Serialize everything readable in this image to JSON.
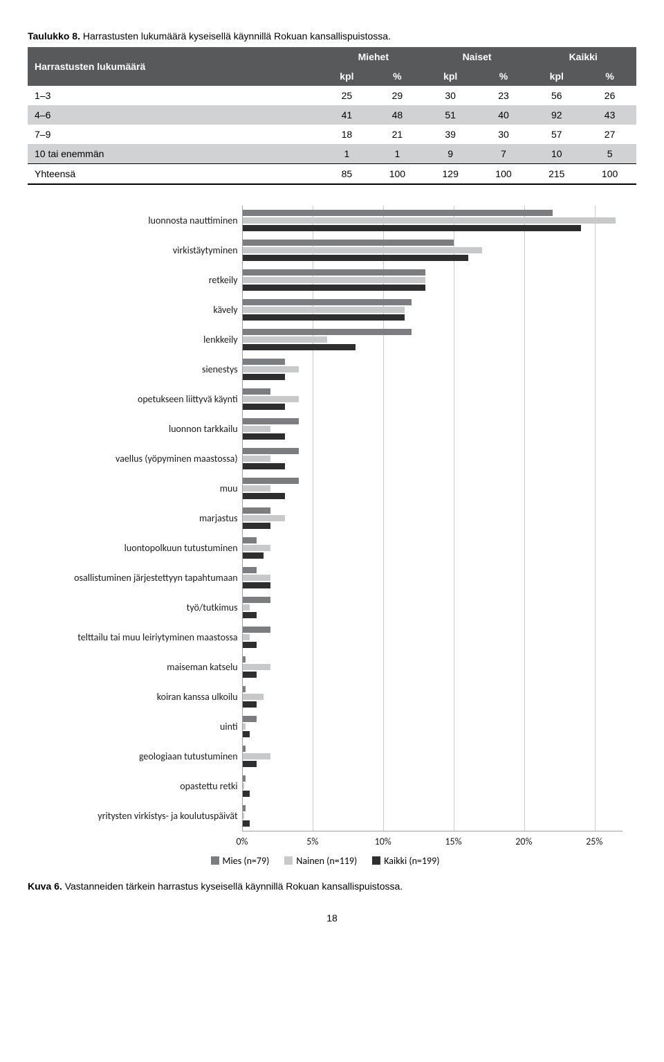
{
  "table_caption_bold": "Taulukko 8.",
  "table_caption_rest": " Harrastusten lukumäärä kyseisellä käynnillä Rokuan kansallispuistossa.",
  "table": {
    "header_rowspan": "Harrastusten lukumäärä",
    "group_headers": [
      "Miehet",
      "Naiset",
      "Kaikki"
    ],
    "sub_headers": [
      "kpl",
      "%",
      "kpl",
      "%",
      "kpl",
      "%"
    ],
    "rows": [
      {
        "label": "1–3",
        "cells": [
          "25",
          "29",
          "30",
          "23",
          "56",
          "26"
        ],
        "striped": false
      },
      {
        "label": "4–6",
        "cells": [
          "41",
          "48",
          "51",
          "40",
          "92",
          "43"
        ],
        "striped": true
      },
      {
        "label": "7–9",
        "cells": [
          "18",
          "21",
          "39",
          "30",
          "57",
          "27"
        ],
        "striped": false
      },
      {
        "label": "10 tai enemmän",
        "cells": [
          "1",
          "1",
          "9",
          "7",
          "10",
          "5"
        ],
        "striped": true
      },
      {
        "label": "Yhteensä",
        "cells": [
          "85",
          "100",
          "129",
          "100",
          "215",
          "100"
        ],
        "total": true
      }
    ]
  },
  "chart": {
    "type": "grouped-horizontal-bar",
    "xmax": 27,
    "xticks": [
      {
        "pos": 0,
        "label": "0%"
      },
      {
        "pos": 5,
        "label": "5%"
      },
      {
        "pos": 10,
        "label": "10%"
      },
      {
        "pos": 15,
        "label": "15%"
      },
      {
        "pos": 20,
        "label": "20%"
      },
      {
        "pos": 25,
        "label": "25%"
      }
    ],
    "series_colors": {
      "mies": "#7b7d80",
      "nainen": "#c8c9ca",
      "kaikki": "#2e2e2f"
    },
    "categories": [
      {
        "label": "luonnosta nauttiminen",
        "mies": 22.0,
        "nainen": 26.5,
        "kaikki": 24.0
      },
      {
        "label": "virkistäytyminen",
        "mies": 15.0,
        "nainen": 17.0,
        "kaikki": 16.0
      },
      {
        "label": "retkeily",
        "mies": 13.0,
        "nainen": 13.0,
        "kaikki": 13.0
      },
      {
        "label": "kävely",
        "mies": 12.0,
        "nainen": 11.5,
        "kaikki": 11.5
      },
      {
        "label": "lenkkeily",
        "mies": 12.0,
        "nainen": 6.0,
        "kaikki": 8.0
      },
      {
        "label": "sienestys",
        "mies": 3.0,
        "nainen": 4.0,
        "kaikki": 3.0
      },
      {
        "label": "opetukseen liittyvä käynti",
        "mies": 2.0,
        "nainen": 4.0,
        "kaikki": 3.0
      },
      {
        "label": "luonnon tarkkailu",
        "mies": 4.0,
        "nainen": 2.0,
        "kaikki": 3.0
      },
      {
        "label": "vaellus (yöpyminen maastossa)",
        "mies": 4.0,
        "nainen": 2.0,
        "kaikki": 3.0
      },
      {
        "label": "muu",
        "mies": 4.0,
        "nainen": 2.0,
        "kaikki": 3.0
      },
      {
        "label": "marjastus",
        "mies": 2.0,
        "nainen": 3.0,
        "kaikki": 2.0
      },
      {
        "label": "luontopolkuun tutustuminen",
        "mies": 1.0,
        "nainen": 2.0,
        "kaikki": 1.5
      },
      {
        "label": "osallistuminen järjestettyyn tapahtumaan",
        "mies": 1.0,
        "nainen": 2.0,
        "kaikki": 2.0
      },
      {
        "label": "työ/tutkimus",
        "mies": 2.0,
        "nainen": 0.5,
        "kaikki": 1.0
      },
      {
        "label": "telttailu tai muu leiriytyminen maastossa",
        "mies": 2.0,
        "nainen": 0.5,
        "kaikki": 1.0
      },
      {
        "label": "maiseman katselu",
        "mies": 0.2,
        "nainen": 2.0,
        "kaikki": 1.0
      },
      {
        "label": "koiran kanssa ulkoilu",
        "mies": 0.2,
        "nainen": 1.5,
        "kaikki": 1.0
      },
      {
        "label": "uinti",
        "mies": 1.0,
        "nainen": 0.2,
        "kaikki": 0.5
      },
      {
        "label": "geologiaan tutustuminen",
        "mies": 0.2,
        "nainen": 2.0,
        "kaikki": 1.0
      },
      {
        "label": "opastettu retki",
        "mies": 0.2,
        "nainen": 0.1,
        "kaikki": 0.5
      },
      {
        "label": "yritysten virkistys- ja koulutuspäivät",
        "mies": 0.2,
        "nainen": 0.1,
        "kaikki": 0.5
      }
    ],
    "legend": [
      {
        "key": "mies",
        "label": "Mies (n=79)"
      },
      {
        "key": "nainen",
        "label": "Nainen (n=119)"
      },
      {
        "key": "kaikki",
        "label": "Kaikki (n=199)"
      }
    ]
  },
  "figure_caption_bold": "Kuva 6.",
  "figure_caption_rest": " Vastanneiden tärkein harrastus kyseisellä käynnillä Rokuan kansallispuistossa.",
  "page_number": "18"
}
